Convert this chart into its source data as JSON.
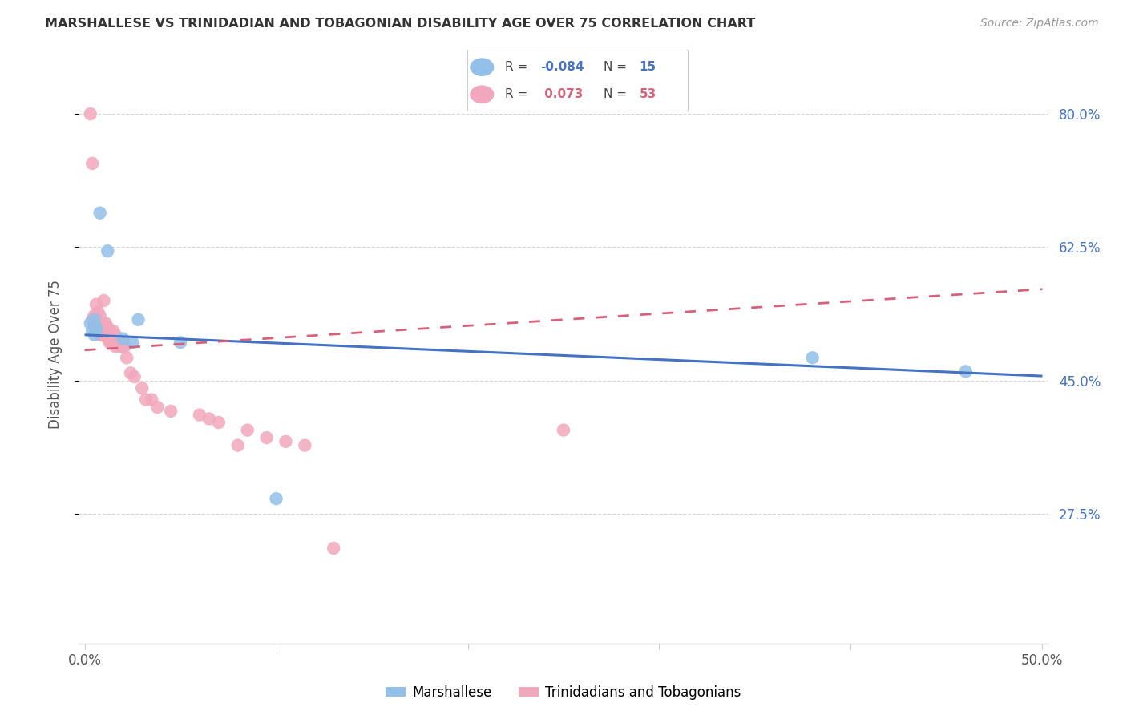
{
  "title": "MARSHALLESE VS TRINIDADIAN AND TOBAGONIAN DISABILITY AGE OVER 75 CORRELATION CHART",
  "source": "Source: ZipAtlas.com",
  "ylabel": "Disability Age Over 75",
  "ytick_labels": [
    "80.0%",
    "62.5%",
    "45.0%",
    "27.5%"
  ],
  "ytick_values": [
    0.8,
    0.625,
    0.45,
    0.275
  ],
  "xlim": [
    -0.003,
    0.503
  ],
  "ylim": [
    0.105,
    0.865
  ],
  "xtick_positions": [
    0.0,
    0.1,
    0.2,
    0.3,
    0.4,
    0.5
  ],
  "xtick_labels": [
    "0.0%",
    "",
    "",
    "",
    "",
    "50.0%"
  ],
  "legend_blue_r": "-0.084",
  "legend_blue_n": "15",
  "legend_pink_r": "0.073",
  "legend_pink_n": "53",
  "blue_scatter_color": "#92C0E8",
  "pink_scatter_color": "#F2A8BC",
  "blue_line_color": "#4472C4",
  "pink_line_color": "#D9607A",
  "grid_color": "#D5D5D5",
  "title_color": "#333333",
  "source_color": "#999999",
  "axis_label_color": "#555555",
  "right_ytick_color": "#4472C4",
  "background_color": "#FFFFFF",
  "marshallese_x": [
    0.003,
    0.004,
    0.005,
    0.005,
    0.006,
    0.006,
    0.008,
    0.012,
    0.02,
    0.025,
    0.028,
    0.05,
    0.1,
    0.38,
    0.46
  ],
  "marshallese_y": [
    0.525,
    0.515,
    0.53,
    0.51,
    0.52,
    0.515,
    0.67,
    0.62,
    0.505,
    0.5,
    0.53,
    0.5,
    0.295,
    0.48,
    0.462
  ],
  "trinidadian_x": [
    0.003,
    0.004,
    0.004,
    0.005,
    0.005,
    0.005,
    0.006,
    0.006,
    0.007,
    0.007,
    0.007,
    0.008,
    0.008,
    0.008,
    0.009,
    0.009,
    0.01,
    0.01,
    0.01,
    0.011,
    0.011,
    0.012,
    0.012,
    0.013,
    0.013,
    0.014,
    0.014,
    0.015,
    0.015,
    0.016,
    0.016,
    0.018,
    0.019,
    0.02,
    0.021,
    0.022,
    0.024,
    0.026,
    0.03,
    0.032,
    0.035,
    0.038,
    0.045,
    0.06,
    0.065,
    0.07,
    0.08,
    0.085,
    0.095,
    0.105,
    0.115,
    0.13,
    0.25
  ],
  "trinidadian_y": [
    0.8,
    0.735,
    0.53,
    0.535,
    0.53,
    0.525,
    0.55,
    0.53,
    0.54,
    0.53,
    0.52,
    0.535,
    0.525,
    0.51,
    0.52,
    0.51,
    0.555,
    0.525,
    0.51,
    0.525,
    0.51,
    0.52,
    0.505,
    0.515,
    0.5,
    0.51,
    0.5,
    0.515,
    0.5,
    0.51,
    0.495,
    0.495,
    0.5,
    0.495,
    0.495,
    0.48,
    0.46,
    0.455,
    0.44,
    0.425,
    0.425,
    0.415,
    0.41,
    0.405,
    0.4,
    0.395,
    0.365,
    0.385,
    0.375,
    0.37,
    0.365,
    0.23,
    0.385
  ]
}
